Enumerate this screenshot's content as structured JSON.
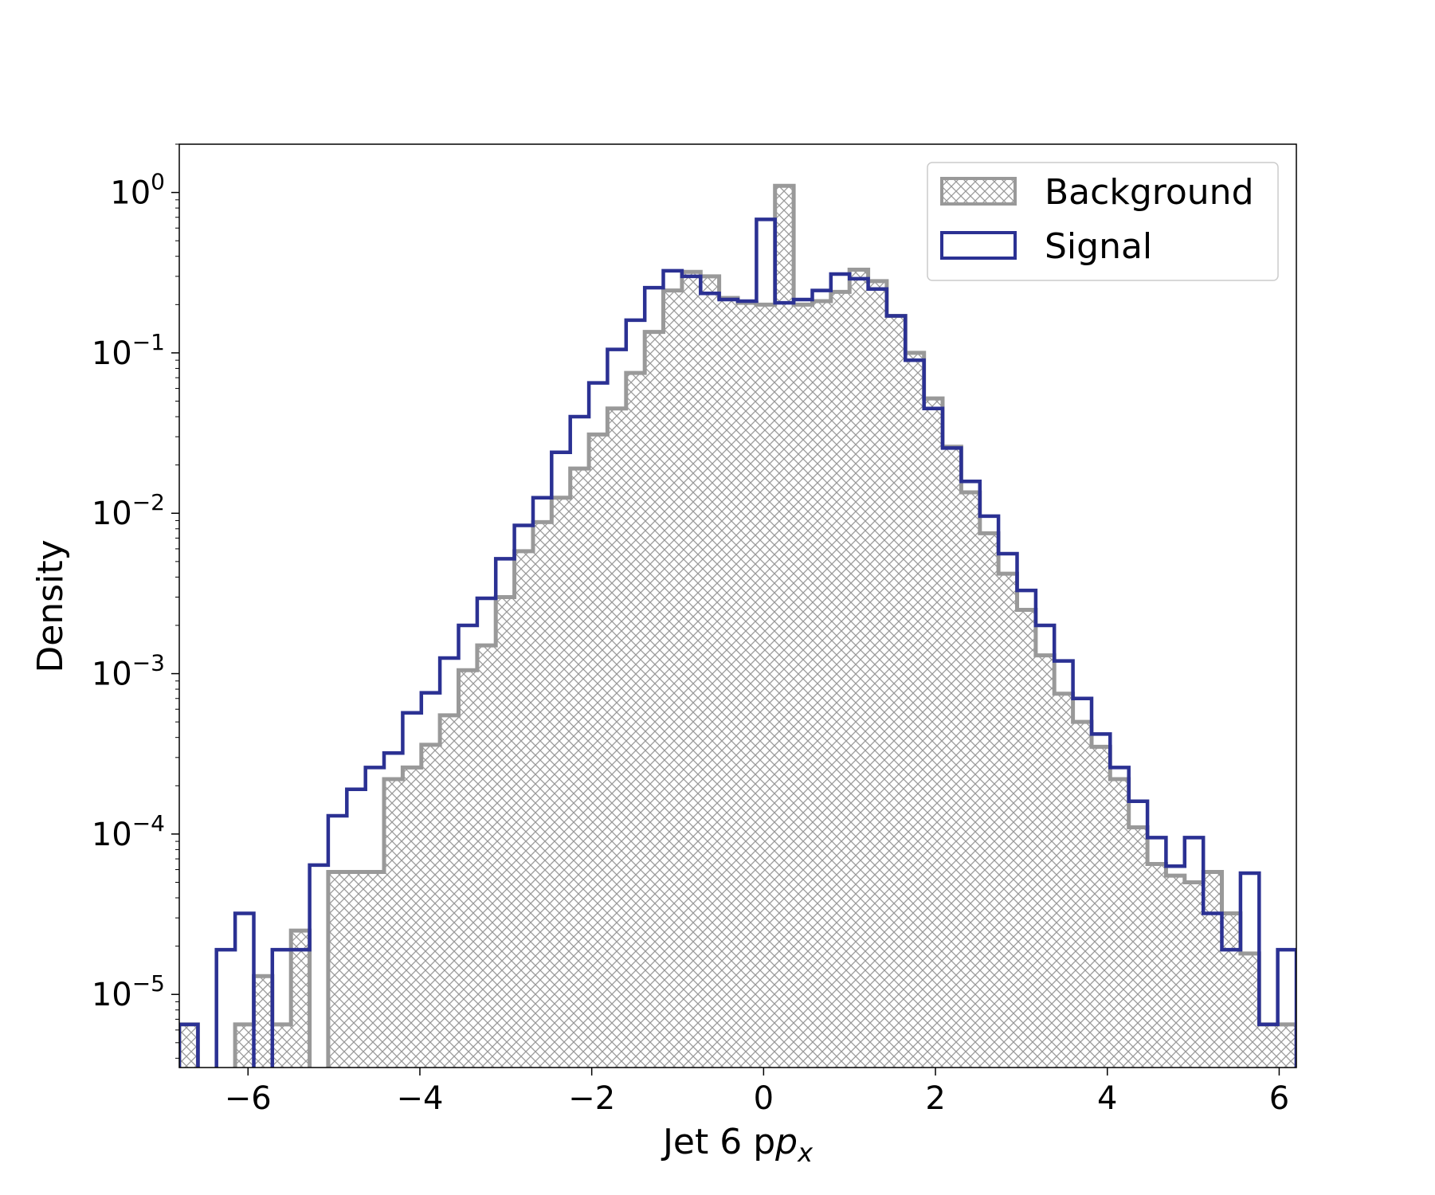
{
  "chart_data": {
    "type": "histogram",
    "xlabel": "Jet 6 p",
    "xlabel_sub": "x",
    "ylabel": "Density",
    "xlim": [
      -6.8,
      6.2
    ],
    "ylim": [
      3.5e-06,
      2.0
    ],
    "yscale": "log",
    "grid": false,
    "legend_position": "top-right",
    "bin_edges": [
      -6.8,
      -6.583,
      -6.367,
      -6.15,
      -5.933,
      -5.717,
      -5.5,
      -5.283,
      -5.067,
      -4.85,
      -4.633,
      -4.417,
      -4.2,
      -3.983,
      -3.767,
      -3.55,
      -3.333,
      -3.117,
      -2.9,
      -2.683,
      -2.467,
      -2.25,
      -2.033,
      -1.817,
      -1.6,
      -1.383,
      -1.167,
      -0.95,
      -0.733,
      -0.517,
      -0.3,
      -0.083,
      0.133,
      0.35,
      0.567,
      0.783,
      1.0,
      1.217,
      1.433,
      1.65,
      1.867,
      2.083,
      2.3,
      2.517,
      2.733,
      2.95,
      3.167,
      3.383,
      3.6,
      3.817,
      4.033,
      4.25,
      4.467,
      4.683,
      4.9,
      5.117,
      5.333,
      5.55,
      5.767,
      5.983,
      6.2
    ],
    "x_ticks": [
      -6,
      -4,
      -2,
      0,
      2,
      4,
      6
    ],
    "x_tick_labels": [
      "−6",
      "−4",
      "−2",
      "0",
      "2",
      "4",
      "6"
    ],
    "y_ticks": [
      1e-05,
      0.0001,
      0.001,
      0.01,
      0.1,
      1
    ],
    "y_tick_bases": [
      "10",
      "10",
      "10",
      "10",
      "10",
      "10"
    ],
    "y_tick_exponents": [
      "−5",
      "−4",
      "−3",
      "−2",
      "−1",
      "0"
    ],
    "series": [
      {
        "name": "Background",
        "color": "#999999",
        "style": "hatched",
        "values": [
          6.5e-06,
          0,
          0,
          6.5e-06,
          1.3e-05,
          6.5e-06,
          2.5e-05,
          0,
          5.8e-05,
          5.8e-05,
          5.8e-05,
          0.00022,
          0.00026,
          0.00036,
          0.00055,
          0.00105,
          0.0015,
          0.003,
          0.0058,
          0.0088,
          0.0125,
          0.019,
          0.031,
          0.045,
          0.075,
          0.135,
          0.245,
          0.32,
          0.3,
          0.22,
          0.205,
          0.2,
          1.1,
          0.2,
          0.21,
          0.24,
          0.33,
          0.28,
          0.17,
          0.1,
          0.052,
          0.026,
          0.0135,
          0.0075,
          0.0042,
          0.0025,
          0.0013,
          0.00075,
          0.0005,
          0.00035,
          0.00022,
          0.00011,
          6.5e-05,
          5.5e-05,
          5e-05,
          5.8e-05,
          3.2e-05,
          1.8e-05,
          6.5e-06,
          6.5e-06
        ]
      },
      {
        "name": "Signal",
        "color": "#2b3193",
        "style": "step",
        "values": [
          6.5e-06,
          0,
          1.9e-05,
          3.2e-05,
          0,
          1.9e-05,
          1.9e-05,
          6.4e-05,
          0.00013,
          0.00019,
          0.00026,
          0.00032,
          0.00057,
          0.00076,
          0.00125,
          0.002,
          0.00295,
          0.0052,
          0.0084,
          0.0125,
          0.024,
          0.04,
          0.065,
          0.105,
          0.16,
          0.255,
          0.325,
          0.3,
          0.235,
          0.215,
          0.21,
          0.68,
          0.205,
          0.215,
          0.245,
          0.31,
          0.29,
          0.25,
          0.17,
          0.09,
          0.045,
          0.0255,
          0.0158,
          0.0096,
          0.0056,
          0.0033,
          0.002,
          0.0012,
          0.0007,
          0.00042,
          0.00026,
          0.00016,
          9.5e-05,
          6.3e-05,
          9.5e-05,
          3.2e-05,
          1.9e-05,
          5.7e-05,
          6.5e-06,
          1.9e-05
        ]
      }
    ]
  }
}
